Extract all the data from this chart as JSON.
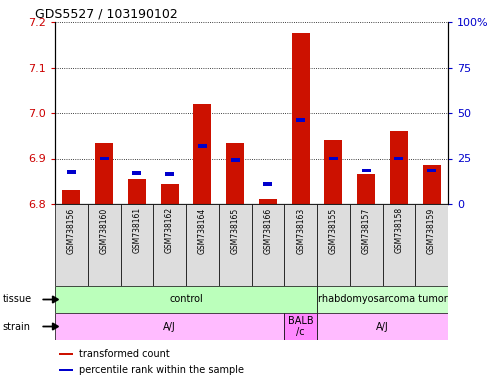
{
  "title": "GDS5527 / 103190102",
  "samples": [
    "GSM738156",
    "GSM738160",
    "GSM738161",
    "GSM738162",
    "GSM738164",
    "GSM738165",
    "GSM738166",
    "GSM738163",
    "GSM738155",
    "GSM738157",
    "GSM738158",
    "GSM738159"
  ],
  "red_values": [
    6.83,
    6.935,
    6.855,
    6.845,
    7.02,
    6.935,
    6.81,
    7.175,
    6.94,
    6.865,
    6.96,
    6.885
  ],
  "blue_percentiles": [
    17.5,
    25,
    17,
    16.5,
    32,
    24,
    11,
    46,
    25,
    18.5,
    25,
    18.5
  ],
  "ylim_left": [
    6.8,
    7.2
  ],
  "ylim_right": [
    0,
    100
  ],
  "yticks_left": [
    6.8,
    6.9,
    7.0,
    7.1,
    7.2
  ],
  "yticks_right": [
    0,
    25,
    50,
    75,
    100
  ],
  "left_tick_color": "#cc0000",
  "right_tick_color": "#0000cc",
  "bar_color_red": "#cc1100",
  "bar_color_blue": "#0000cc",
  "tissue_groups": [
    {
      "label": "control",
      "start": 0,
      "end": 8,
      "color": "#bbffbb"
    },
    {
      "label": "rhabdomyosarcoma tumor",
      "start": 8,
      "end": 12,
      "color": "#ccffcc"
    }
  ],
  "strain_groups": [
    {
      "label": "A/J",
      "start": 0,
      "end": 7,
      "color": "#ffbbff"
    },
    {
      "label": "BALB\n/c",
      "start": 7,
      "end": 8,
      "color": "#ff88ff"
    },
    {
      "label": "A/J",
      "start": 8,
      "end": 12,
      "color": "#ffbbff"
    }
  ],
  "sample_bg_color": "#dddddd",
  "legend_items": [
    {
      "color": "#cc1100",
      "label": "transformed count"
    },
    {
      "color": "#0000cc",
      "label": "percentile rank within the sample"
    }
  ]
}
